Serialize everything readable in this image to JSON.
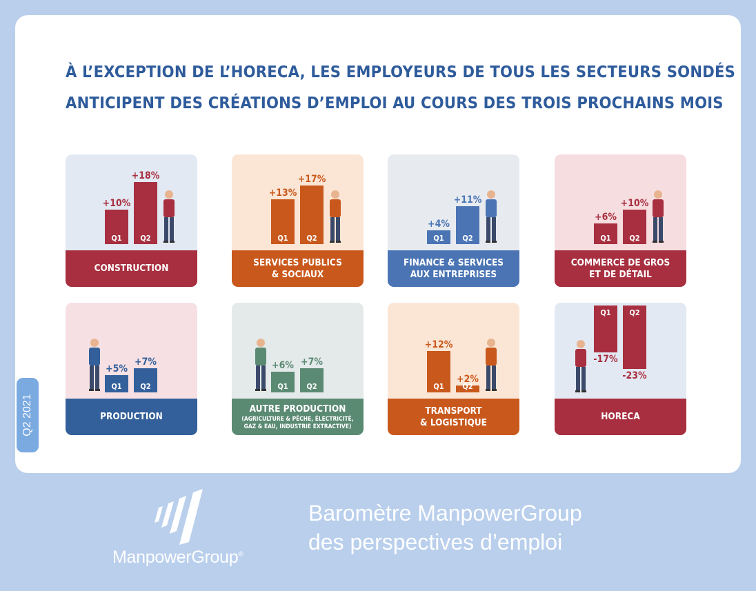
{
  "heading": {
    "line1": "À L’EXCEPTION DE L’HORECA,  LES EMPLOYEURS DE TOUS LES SECTEURS SONDÉS",
    "line2": "ANTICIPENT DES CRÉATIONS D’EMPLOI AU COURS DES TROIS PROCHAINS MOIS"
  },
  "side_label": "Q2 2021",
  "brand": {
    "name": "ManpowerGroup",
    "mark": "®"
  },
  "tagline": {
    "line1": "Baromètre ManpowerGroup",
    "line2": "des perspectives d’emploi"
  },
  "colors": {
    "page_bg": "#b9cfec",
    "title": "#2e5b9b",
    "bar_text": "#ffffff",
    "side_tab": "#7aaae0"
  },
  "chart_data": [
    {
      "type": "bar",
      "sector": "CONSTRUCTION",
      "band_lines": [
        "CONSTRUCTION"
      ],
      "categories": [
        "Q1",
        "Q2"
      ],
      "values": [
        10,
        18
      ],
      "value_labels": [
        "+10%",
        "+18%"
      ],
      "color": "#a72f3f",
      "card_bg": "#e3e9f3",
      "icon": "construction-worker-icon"
    },
    {
      "type": "bar",
      "sector": "SERVICES PUBLICS & SOCIAUX",
      "band_lines": [
        "SERVICES PUBLICS",
        "& SOCIAUX"
      ],
      "categories": [
        "Q1",
        "Q2"
      ],
      "values": [
        13,
        17
      ],
      "value_labels": [
        "+13%",
        "+17%"
      ],
      "color": "#c9581c",
      "card_bg": "#fbe6d6",
      "icon": "speaker-at-podium-icon"
    },
    {
      "type": "bar",
      "sector": "FINANCE & SERVICES AUX ENTREPRISES",
      "band_lines": [
        "FINANCE & SERVICES",
        "AUX ENTREPRISES"
      ],
      "categories": [
        "Q1",
        "Q2"
      ],
      "values": [
        4,
        11
      ],
      "value_labels": [
        "+4%",
        "+11%"
      ],
      "color": "#4a74b4",
      "card_bg": "#e7ebf0",
      "icon": "businesswoman-icon"
    },
    {
      "type": "bar",
      "sector": "COMMERCE DE GROS ET DE DÉTAIL",
      "band_lines": [
        "COMMERCE DE GROS",
        "ET DE DÉTAIL"
      ],
      "categories": [
        "Q1",
        "Q2"
      ],
      "values": [
        6,
        10
      ],
      "value_labels": [
        "+6%",
        "+10%"
      ],
      "color": "#a72f3f",
      "card_bg": "#f6dde0",
      "icon": "phone-seller-icon"
    },
    {
      "type": "bar",
      "sector": "PRODUCTION",
      "band_lines": [
        "PRODUCTION"
      ],
      "categories": [
        "Q1",
        "Q2"
      ],
      "values": [
        5,
        7
      ],
      "value_labels": [
        "+5%",
        "+7%"
      ],
      "color": "#33609b",
      "card_bg": "#f6e0e3",
      "icon": "factory-worker-icon"
    },
    {
      "type": "bar",
      "sector": "AUTRE PRODUCTION",
      "band_lines": [
        "AUTRE PRODUCTION",
        "(AGRICULTURE & PÊCHE, ÉLECTRICITÉ,",
        "GAZ & EAU, INDUSTRIE EXTRACTIVE)"
      ],
      "categories": [
        "Q1",
        "Q2"
      ],
      "values": [
        6,
        7
      ],
      "value_labels": [
        "+6%",
        "+7%"
      ],
      "color": "#5b8a73",
      "card_bg": "#e4e9ea",
      "icon": "farmer-icon"
    },
    {
      "type": "bar",
      "sector": "TRANSPORT & LOGISTIQUE",
      "band_lines": [
        "TRANSPORT",
        "& LOGISTIQUE"
      ],
      "categories": [
        "Q1",
        "Q2"
      ],
      "values": [
        12,
        2
      ],
      "value_labels": [
        "+12%",
        "+2%"
      ],
      "color": "#c9581c",
      "card_bg": "#fbe6d6",
      "icon": "delivery-worker-icon"
    },
    {
      "type": "bar",
      "sector": "HORECA",
      "band_lines": [
        "HORECA"
      ],
      "categories": [
        "Q1",
        "Q2"
      ],
      "values": [
        -17,
        -23
      ],
      "value_labels": [
        "-17%",
        "-23%"
      ],
      "color": "#a72f3f",
      "card_bg": "#e3e9f3",
      "icon": "waitress-icon"
    }
  ]
}
